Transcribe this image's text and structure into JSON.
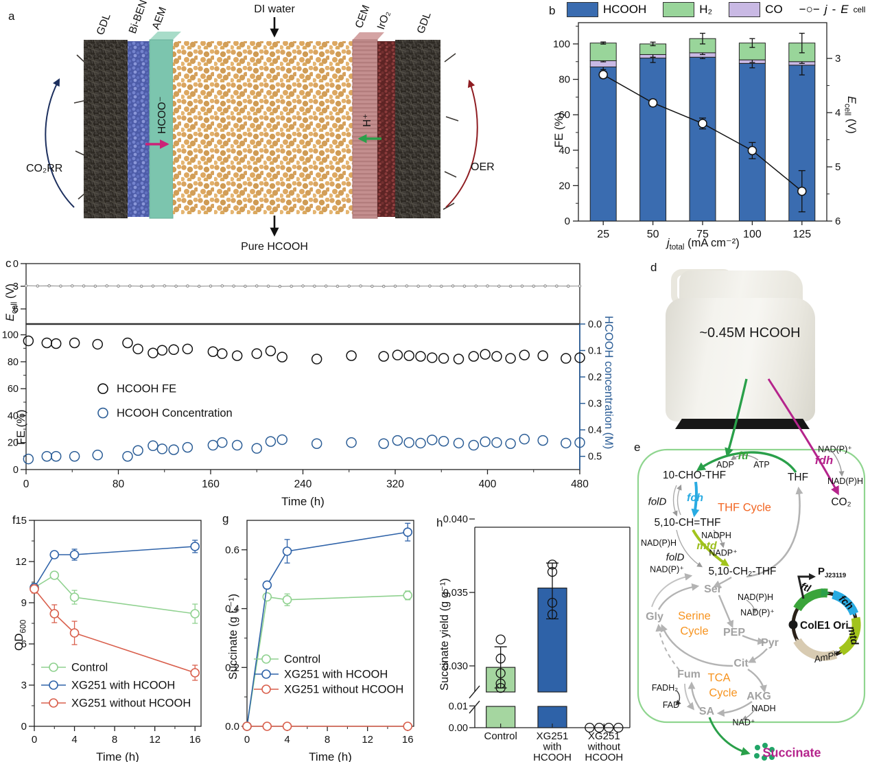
{
  "panels": {
    "a": "a",
    "b": "b",
    "c": "c",
    "d": "d",
    "e": "e",
    "f": "f",
    "g": "g",
    "h": "h"
  },
  "colors": {
    "hcooh_blue": "#3a6cb0",
    "h2_green": "#99d59a",
    "co_purple": "#c9b9e4",
    "control_green": "#8fd18f",
    "with_blue": "#2e62a8",
    "without_red": "#d95f4c",
    "conc_blue": "#2b5d96",
    "bar_green": "#a5d6a0",
    "co2rr_navy": "#1c2f5e",
    "oer_red": "#8f1d22",
    "hcoo_arrow": "#cc2277",
    "h_arrow": "#2aa04a",
    "succinate_dots": "#21a567"
  },
  "panel_a": {
    "labels": {
      "gdl_left": "GDL",
      "biben": "Bi-BEN",
      "aem": "AEM",
      "di_water": "DI water",
      "cem": "CEM",
      "iro2": "IrO₂",
      "gdl_right": "GDL",
      "hcoo": "HCOO⁻",
      "h_plus": "H⁺",
      "co2rr": "CO₂RR",
      "oer": "OER",
      "pure_hcooh": "Pure HCOOH"
    }
  },
  "panel_d": {
    "jug_label": "~0.45M HCOOH"
  },
  "labels": {
    "fe": "FE (%)",
    "time": "Time (h)",
    "ecell": {
      "i": "E",
      "sub": "cell",
      "rest": " (V)"
    },
    "jtotal": {
      "i": "j",
      "sub": "total",
      "rest": " (mA cm⁻²)"
    },
    "od": {
      "pre": "OD",
      "sub": "600"
    },
    "succ_g": "Succinate (g L⁻¹)",
    "succ_yield": "Succinate yield (g g⁻¹)",
    "conc": "HCOOH concentration (M)"
  },
  "legend_b": {
    "hcooh": "HCOOH",
    "h2": "H₂",
    "co": "CO",
    "line": {
      "dash": "−○−",
      "j": "j",
      "hyphen": "-",
      "E": "E",
      "sub": "cell"
    }
  },
  "chart_data": [
    {
      "id": "b",
      "type": "bar",
      "categories": [
        25,
        50,
        75,
        100,
        125
      ],
      "xlabel": "j_total (mA cm-2)",
      "ylabel": "FE (%)",
      "ylabel_right": "E_cell (V)",
      "ylim_left": [
        0,
        112
      ],
      "yticks_left": [
        0,
        20,
        40,
        60,
        80,
        100
      ],
      "ylim_right": [
        2.34,
        6.0
      ],
      "yticks_right": [
        3,
        4,
        5,
        6
      ],
      "series": [
        {
          "name": "HCOOH",
          "color": "hcooh_blue",
          "values": [
            87,
            92,
            92.5,
            89,
            88
          ],
          "err": [
            1.5,
            2.5,
            0.8,
            2.5,
            5.5
          ]
        },
        {
          "name": "CO",
          "color": "co_purple",
          "values": [
            3.5,
            2,
            2.5,
            2,
            2
          ],
          "err": [
            0.6,
            1.5,
            1,
            1.5,
            1
          ]
        },
        {
          "name": "H2",
          "color": "h2_green",
          "values": [
            10,
            6,
            8,
            9.5,
            10.5
          ],
          "err": [
            0.6,
            1,
            3,
            2.5,
            5.5
          ]
        }
      ],
      "line": {
        "name": "j-Ecell",
        "values": [
          3.3,
          3.82,
          4.2,
          4.7,
          5.45
        ],
        "err": [
          0.06,
          0.06,
          0.1,
          0.15,
          0.38
        ]
      }
    },
    {
      "id": "c_top",
      "type": "line",
      "ylabel": "E_cell (V)",
      "ylim": [
        0,
        8
      ],
      "yticks": [
        0,
        3,
        6
      ],
      "xlim": [
        0,
        480
      ],
      "trace_t_step": 10,
      "trace": [
        2.93,
        2.96,
        2.94,
        2.97,
        2.95,
        2.96,
        2.98,
        2.95,
        2.97,
        2.96,
        2.99,
        2.97,
        2.95,
        2.98,
        2.96,
        3.0,
        2.97,
        2.95,
        2.97,
        2.99,
        2.96,
        2.98,
        3.02,
        2.99,
        2.96,
        2.98,
        2.97,
        3.0,
        2.98,
        2.96,
        2.99,
        3.01,
        2.98,
        2.96,
        2.98,
        2.97,
        2.99,
        2.96,
        2.98,
        2.97,
        2.96,
        2.98,
        2.99,
        2.97,
        2.98,
        2.96,
        2.97,
        2.98,
        2.97
      ]
    },
    {
      "id": "c_bot",
      "type": "scatter",
      "xlabel": "Time (h)",
      "ylabel": "FE (%)",
      "ylabel_right": "HCOOH concentration (M)",
      "xlim": [
        0,
        480
      ],
      "xticks": [
        0,
        80,
        160,
        240,
        320,
        400,
        480
      ],
      "ylim_left": [
        0,
        108
      ],
      "yticks_left": [
        0,
        20,
        40,
        60,
        80,
        100
      ],
      "conc_lim": [
        0,
        0.55
      ],
      "conc_ticks": [
        0.0,
        0.1,
        0.2,
        0.3,
        0.4,
        0.5
      ],
      "legend": [
        "HCOOH FE",
        "HCOOH Concentration"
      ],
      "t": [
        2,
        18,
        26,
        42,
        62,
        88,
        97,
        110,
        118,
        128,
        140,
        162,
        170,
        183,
        200,
        212,
        222,
        252,
        282,
        310,
        322,
        332,
        342,
        352,
        362,
        375,
        388,
        398,
        408,
        420,
        432,
        448,
        468,
        480
      ],
      "fe": [
        95.5,
        94,
        93.5,
        94,
        93,
        94,
        89.5,
        86.5,
        88.5,
        89,
        89.5,
        87.5,
        86,
        84.5,
        86,
        88,
        83.5,
        82,
        84.5,
        84,
        85,
        84.5,
        84,
        83,
        82.5,
        82,
        84,
        85.5,
        84,
        82.5,
        85,
        84.5,
        82.5,
        83
      ],
      "conc": [
        0.51,
        0.5,
        0.5,
        0.5,
        0.495,
        0.5,
        0.478,
        0.46,
        0.472,
        0.475,
        0.466,
        0.458,
        0.448,
        0.458,
        0.47,
        0.444,
        0.437,
        0.452,
        0.448,
        0.452,
        0.44,
        0.448,
        0.45,
        0.438,
        0.443,
        0.45,
        0.458,
        0.445,
        0.448,
        0.452,
        0.435,
        0.44,
        0.45,
        0.448
      ]
    },
    {
      "id": "f",
      "type": "line",
      "xlabel": "Time (h)",
      "ylabel": "OD600",
      "x": [
        0,
        2,
        4,
        16
      ],
      "xlim": [
        0,
        16.6
      ],
      "xticks": [
        0,
        4,
        8,
        12,
        16
      ],
      "xminors": [
        2,
        6,
        10,
        14
      ],
      "ylim": [
        0,
        15
      ],
      "yticks": [
        0,
        3,
        6,
        9,
        12,
        15
      ],
      "yminor_step": 1.5,
      "ydec": 0,
      "series": [
        {
          "name": "Control",
          "color": "control_green",
          "values": [
            10.1,
            11.0,
            9.4,
            8.2
          ],
          "err": [
            0.3,
            0.25,
            0.5,
            0.7
          ]
        },
        {
          "name": "XG251 with HCOOH",
          "color": "with_blue",
          "values": [
            10.1,
            12.5,
            12.5,
            13.1
          ],
          "err": [
            0.3,
            0.25,
            0.4,
            0.45
          ]
        },
        {
          "name": "XG251 without HCOOH",
          "color": "without_red",
          "values": [
            10.0,
            8.2,
            6.8,
            3.9
          ],
          "err": [
            0.3,
            0.65,
            0.85,
            0.55
          ]
        }
      ]
    },
    {
      "id": "g",
      "type": "line",
      "xlabel": "Time (h)",
      "ylabel": "Succinate (g L-1)",
      "x": [
        0,
        2,
        4,
        16
      ],
      "xlim": [
        0,
        16.6
      ],
      "xticks": [
        0,
        4,
        8,
        12,
        16
      ],
      "xminors": [
        2,
        6,
        10,
        14
      ],
      "ylim": [
        0,
        0.7
      ],
      "yticks": [
        0,
        0.2,
        0.4,
        0.6
      ],
      "yminor_step": 0.1,
      "ydec": 1,
      "series": [
        {
          "name": "Control",
          "color": "control_green",
          "values": [
            0.0,
            0.44,
            0.43,
            0.445
          ],
          "err": [
            0.004,
            0.01,
            0.02,
            0.015
          ]
        },
        {
          "name": "XG251 with HCOOH",
          "color": "with_blue",
          "values": [
            0.0,
            0.48,
            0.595,
            0.66
          ],
          "err": [
            0.004,
            0.012,
            0.04,
            0.03
          ]
        },
        {
          "name": "XG251 without HCOOH",
          "color": "without_red",
          "values": [
            0.0,
            0.0,
            0.0,
            0.0
          ],
          "err": [
            0,
            0.004,
            0.006,
            0.004
          ]
        }
      ]
    },
    {
      "id": "h",
      "type": "broken-bar",
      "ylabel": "Succinate yield (g g-1)",
      "categories": [
        [
          "Control"
        ],
        [
          "XG251",
          "with",
          "HCOOH"
        ],
        [
          "XG251",
          "without",
          "HCOOH"
        ]
      ],
      "values": [
        0.0299,
        0.0353,
        0
      ],
      "bar_colors": [
        "bar_green",
        "with_blue",
        null
      ],
      "err_lo": [
        0.0285,
        0.0332,
        0
      ],
      "err_hi": [
        0.0313,
        0.037,
        0
      ],
      "points": [
        [
          0.0285,
          0.0288,
          0.0295,
          0.0305,
          0.0318
        ],
        [
          0.0335,
          0.0343,
          0.0364,
          0.0369
        ],
        [
          0,
          0,
          0,
          0
        ]
      ],
      "yticks_lower": [
        0.0,
        0.01
      ],
      "yticks_upper": [
        0.03,
        0.035,
        0.04
      ]
    }
  ],
  "panel_e": {
    "labels": {
      "ftl": "ftl",
      "adp": "ADP",
      "atp": "ATP",
      "cho_thf": "10-CHO-THF",
      "thf": "THF",
      "nadp_plus_1": "NAD(P)⁺",
      "fdh": "fdh",
      "nadph_1": "NAD(P)H",
      "co2": "CO₂",
      "fold1": "folD",
      "fch": "fch",
      "thf_cycle": "THF Cycle",
      "ch_thf": "5,10-CH=THF",
      "nadph": "NADPH",
      "nadph_2": "NAD(P)H",
      "mtd": "mtd",
      "fold2": "folD",
      "nadp_p": "NADP⁺",
      "nadp_plus_2": "NAD(P)⁺",
      "ch2_thf": "5,10-CH₂-THF",
      "ser": "Ser",
      "nadph_3": "NAD(P)H",
      "nadp_plus_3": "NAD(P)⁺",
      "gly": "Gly",
      "serine_1": "Serine",
      "serine_2": "Cycle",
      "pep": "PEP",
      "pyr": "Pyr",
      "cit": "Cit",
      "fum": "Fum",
      "tca_1": "TCA",
      "tca_2": "Cycle",
      "fadh2": "FADH₂",
      "fad": "FAD",
      "akg": "AKG",
      "sa": "SA",
      "nadh": "NADH",
      "nad_plus": "NAD⁺",
      "cole1": "ColE1 Ori",
      "p_pre": "P",
      "p_sub": "J23119",
      "ampr": "AmPᴿ",
      "gene_ftl": "ftl",
      "gene_fch": "fch",
      "gene_mtd": "mtd",
      "succinate": "Succinate"
    }
  }
}
